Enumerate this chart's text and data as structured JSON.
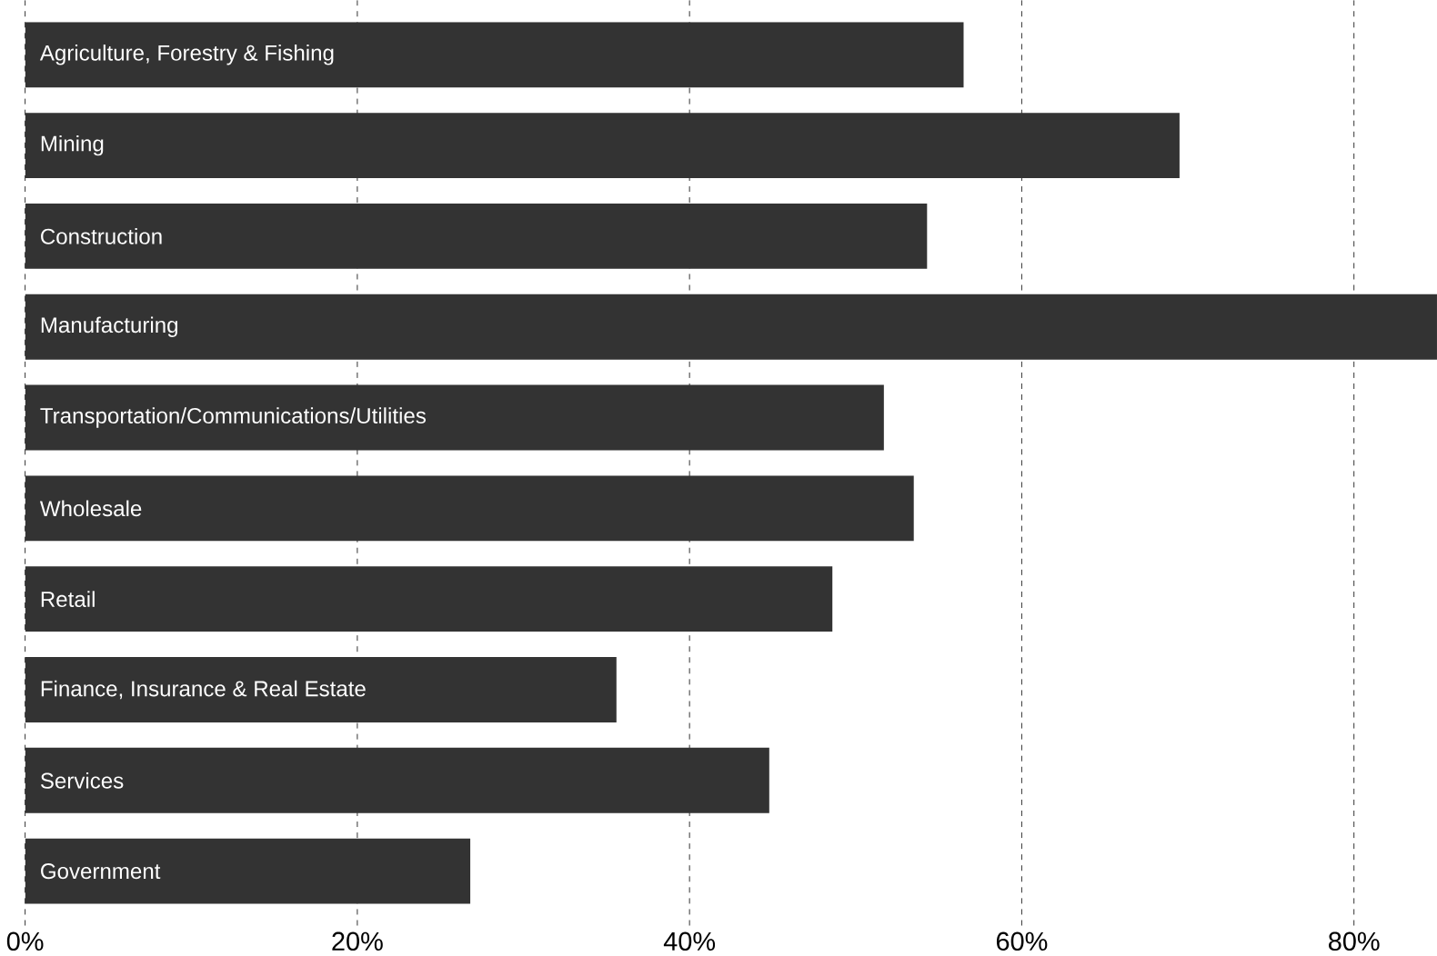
{
  "chart_data": {
    "type": "bar",
    "orientation": "horizontal",
    "categories": [
      "Agriculture, Forestry & Fishing",
      "Mining",
      "Construction",
      "Manufacturing",
      "Transportation/Communications/Utilities",
      "Wholesale",
      "Retail",
      "Finance, Insurance & Real Estate",
      "Services",
      "Government"
    ],
    "values": [
      56.5,
      69.5,
      54.3,
      85,
      51.7,
      53.5,
      48.6,
      35.6,
      44.8,
      26.8
    ],
    "color": "#333333",
    "xlim": [
      0,
      85
    ],
    "xticks": [
      {
        "value": 0,
        "label": "0%"
      },
      {
        "value": 20,
        "label": "20%"
      },
      {
        "value": 40,
        "label": "40%"
      },
      {
        "value": 60,
        "label": "60%"
      },
      {
        "value": 80,
        "label": "80%"
      }
    ],
    "grid": "x"
  }
}
